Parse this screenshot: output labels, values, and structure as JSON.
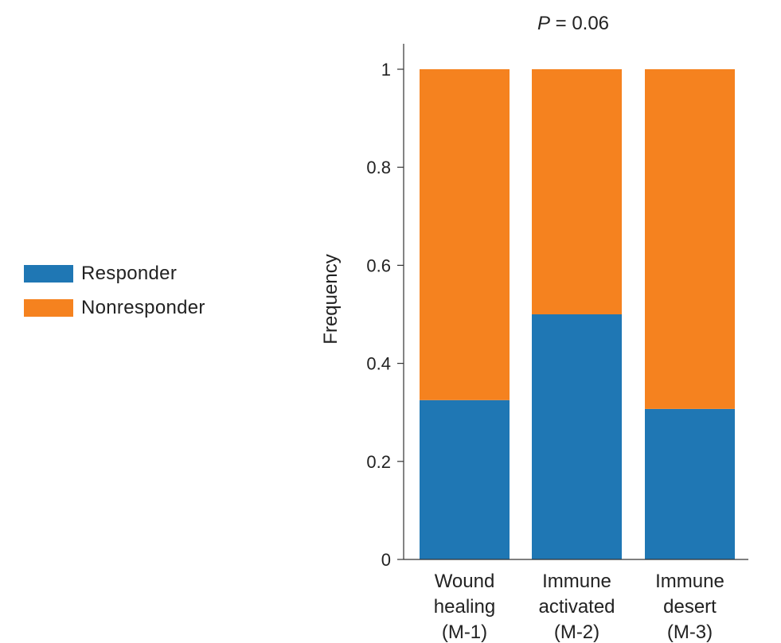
{
  "chart_data": {
    "type": "bar",
    "stacked": true,
    "title_prefix": "P",
    "title_suffix": " = 0.06",
    "ylabel": "Frequency",
    "ylim": [
      0,
      1
    ],
    "yticks": [
      "0",
      "0.2",
      "0.4",
      "0.6",
      "0.8",
      "1"
    ],
    "categories": [
      [
        "Wound",
        "healing",
        "(M-1)"
      ],
      [
        "Immune",
        "activated",
        "(M-2)"
      ],
      [
        "Immune",
        "desert",
        "(M-3)"
      ]
    ],
    "series": [
      {
        "name": "Responder",
        "color": "#1f77b4",
        "values": [
          0.325,
          0.5,
          0.307
        ]
      },
      {
        "name": "Nonresponder",
        "color": "#f5821f",
        "values": [
          0.675,
          0.5,
          0.693
        ]
      }
    ],
    "legend_position": "left"
  }
}
